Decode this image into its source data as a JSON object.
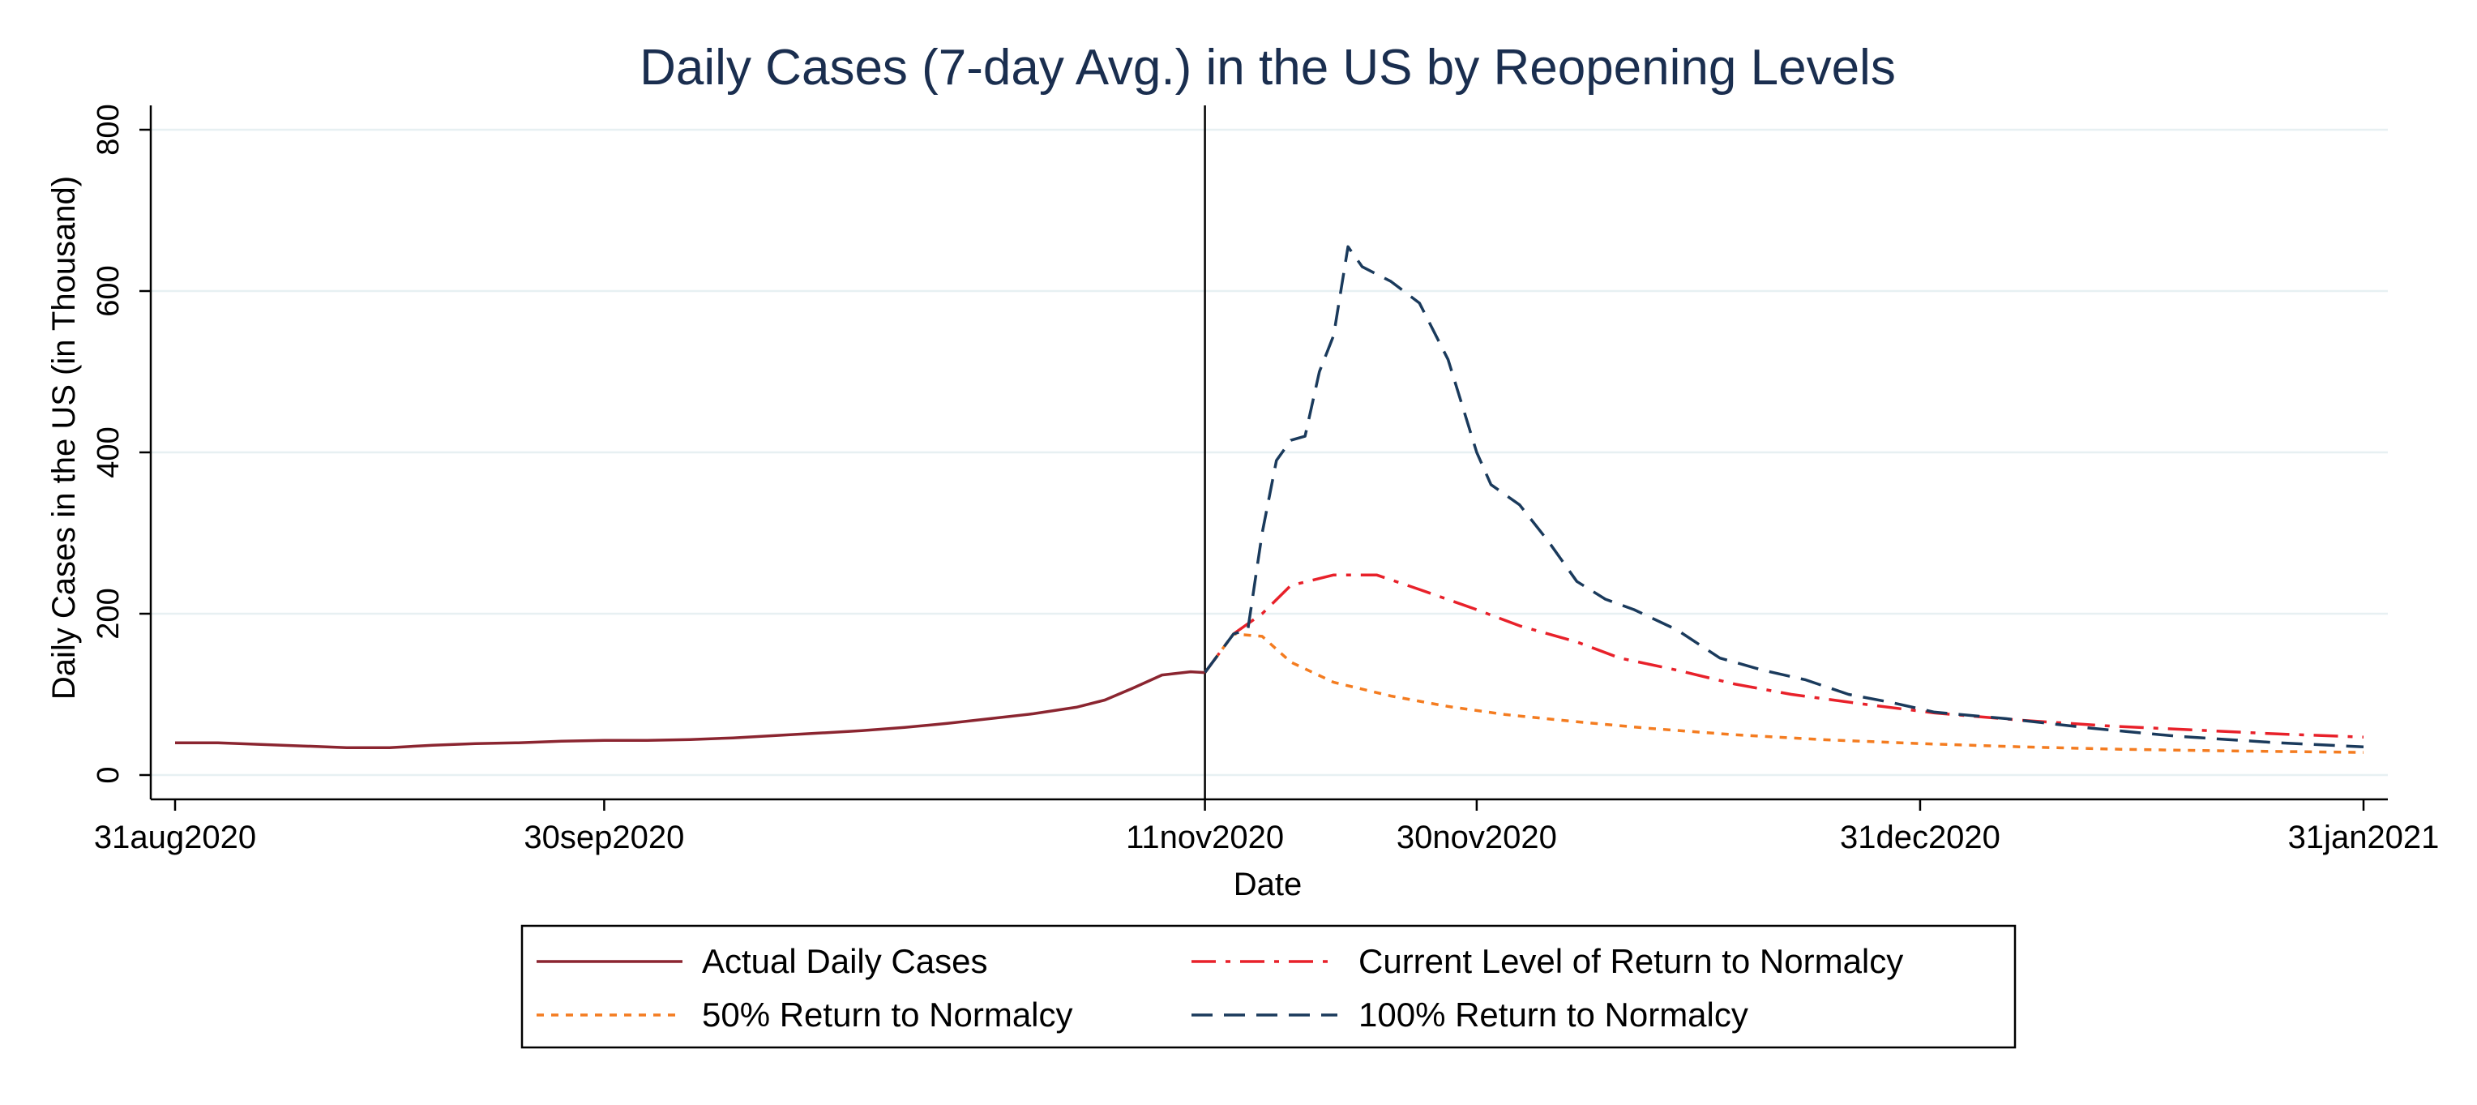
{
  "chart_data": {
    "type": "line",
    "title": "Daily Cases (7-day Avg.) in the US by Reopening Levels",
    "xlabel": "Date",
    "ylabel": "Daily Cases in the US (in Thousand)",
    "xlim": [
      "2020-08-31",
      "2021-01-31"
    ],
    "ylim": [
      0,
      800
    ],
    "x_ticks": [
      {
        "date": "2020-08-31",
        "label": "31aug2020"
      },
      {
        "date": "2020-09-30",
        "label": "30sep2020"
      },
      {
        "date": "2020-11-11",
        "label": "11nov2020"
      },
      {
        "date": "2020-11-30",
        "label": "30nov2020"
      },
      {
        "date": "2020-12-31",
        "label": "31dec2020"
      },
      {
        "date": "2021-01-31",
        "label": "31jan2021"
      }
    ],
    "y_ticks": [
      0,
      200,
      400,
      600,
      800
    ],
    "grid": "horizontal",
    "vline": "2020-11-11",
    "legend_position": "bottom-center",
    "series": [
      {
        "name": "Actual Daily Cases",
        "color": "#8b2530",
        "style": "solid",
        "points": [
          [
            "2020-08-31",
            40
          ],
          [
            "2020-09-03",
            40
          ],
          [
            "2020-09-06",
            38
          ],
          [
            "2020-09-09",
            36
          ],
          [
            "2020-09-12",
            34
          ],
          [
            "2020-09-15",
            34
          ],
          [
            "2020-09-18",
            37
          ],
          [
            "2020-09-21",
            39
          ],
          [
            "2020-09-24",
            40
          ],
          [
            "2020-09-27",
            42
          ],
          [
            "2020-09-30",
            43
          ],
          [
            "2020-10-03",
            43
          ],
          [
            "2020-10-06",
            44
          ],
          [
            "2020-10-09",
            46
          ],
          [
            "2020-10-12",
            49
          ],
          [
            "2020-10-15",
            52
          ],
          [
            "2020-10-18",
            55
          ],
          [
            "2020-10-21",
            59
          ],
          [
            "2020-10-24",
            64
          ],
          [
            "2020-10-27",
            70
          ],
          [
            "2020-10-30",
            76
          ],
          [
            "2020-11-02",
            84
          ],
          [
            "2020-11-04",
            93
          ],
          [
            "2020-11-06",
            108
          ],
          [
            "2020-11-08",
            124
          ],
          [
            "2020-11-10",
            128
          ],
          [
            "2020-11-11",
            127
          ]
        ]
      },
      {
        "name": "Current Level of Return to Normalcy",
        "color": "#e8212a",
        "style": "dashdot",
        "points": [
          [
            "2020-11-11",
            127
          ],
          [
            "2020-11-13",
            175
          ],
          [
            "2020-11-15",
            200
          ],
          [
            "2020-11-17",
            235
          ],
          [
            "2020-11-20",
            248
          ],
          [
            "2020-11-23",
            248
          ],
          [
            "2020-11-26",
            230
          ],
          [
            "2020-11-30",
            205
          ],
          [
            "2020-12-03",
            185
          ],
          [
            "2020-12-07",
            165
          ],
          [
            "2020-12-10",
            145
          ],
          [
            "2020-12-14",
            130
          ],
          [
            "2020-12-18",
            113
          ],
          [
            "2020-12-22",
            100
          ],
          [
            "2020-12-27",
            88
          ],
          [
            "2021-01-01",
            77
          ],
          [
            "2021-01-07",
            68
          ],
          [
            "2021-01-13",
            61
          ],
          [
            "2021-01-19",
            56
          ],
          [
            "2021-01-25",
            51
          ],
          [
            "2021-01-31",
            47
          ]
        ]
      },
      {
        "name": "50% Return to Normalcy",
        "color": "#f47c20",
        "style": "dotted",
        "points": [
          [
            "2020-11-11",
            127
          ],
          [
            "2020-11-13",
            175
          ],
          [
            "2020-11-15",
            172
          ],
          [
            "2020-11-17",
            140
          ],
          [
            "2020-11-20",
            115
          ],
          [
            "2020-11-24",
            98
          ],
          [
            "2020-11-28",
            85
          ],
          [
            "2020-12-02",
            75
          ],
          [
            "2020-12-07",
            66
          ],
          [
            "2020-12-12",
            58
          ],
          [
            "2020-12-18",
            50
          ],
          [
            "2020-12-24",
            44
          ],
          [
            "2020-12-31",
            39
          ],
          [
            "2021-01-07",
            35
          ],
          [
            "2021-01-14",
            32
          ],
          [
            "2021-01-21",
            30
          ],
          [
            "2021-01-31",
            28
          ]
        ]
      },
      {
        "name": "100% Return to Normalcy",
        "color": "#1a3a5c",
        "style": "dashed",
        "points": [
          [
            "2020-11-11",
            127
          ],
          [
            "2020-11-13",
            175
          ],
          [
            "2020-11-14",
            180
          ],
          [
            "2020-11-15",
            300
          ],
          [
            "2020-11-16",
            390
          ],
          [
            "2020-11-17",
            415
          ],
          [
            "2020-11-18",
            420
          ],
          [
            "2020-11-19",
            500
          ],
          [
            "2020-11-20",
            545
          ],
          [
            "2020-11-21",
            655
          ],
          [
            "2020-11-22",
            630
          ],
          [
            "2020-11-24",
            612
          ],
          [
            "2020-11-26",
            585
          ],
          [
            "2020-11-28",
            515
          ],
          [
            "2020-11-30",
            400
          ],
          [
            "2020-12-01",
            360
          ],
          [
            "2020-12-03",
            335
          ],
          [
            "2020-12-05",
            290
          ],
          [
            "2020-12-07",
            240
          ],
          [
            "2020-12-09",
            218
          ],
          [
            "2020-12-11",
            205
          ],
          [
            "2020-12-14",
            180
          ],
          [
            "2020-12-17",
            145
          ],
          [
            "2020-12-20",
            130
          ],
          [
            "2020-12-23",
            118
          ],
          [
            "2020-12-26",
            100
          ],
          [
            "2020-12-29",
            90
          ],
          [
            "2021-01-01",
            78
          ],
          [
            "2021-01-06",
            70
          ],
          [
            "2021-01-12",
            58
          ],
          [
            "2021-01-18",
            48
          ],
          [
            "2021-01-25",
            40
          ],
          [
            "2021-01-31",
            35
          ]
        ]
      }
    ],
    "legend": [
      {
        "label": "Actual Daily Cases",
        "series": 0
      },
      {
        "label": "Current Level of Return to Normalcy",
        "series": 1
      },
      {
        "label": "50% Return to Normalcy",
        "series": 2
      },
      {
        "label": "100% Return to Normalcy",
        "series": 3
      }
    ]
  },
  "colors": {
    "title": "#1a2e4f",
    "axis": "#000000",
    "grid": "#e7f0f2"
  }
}
